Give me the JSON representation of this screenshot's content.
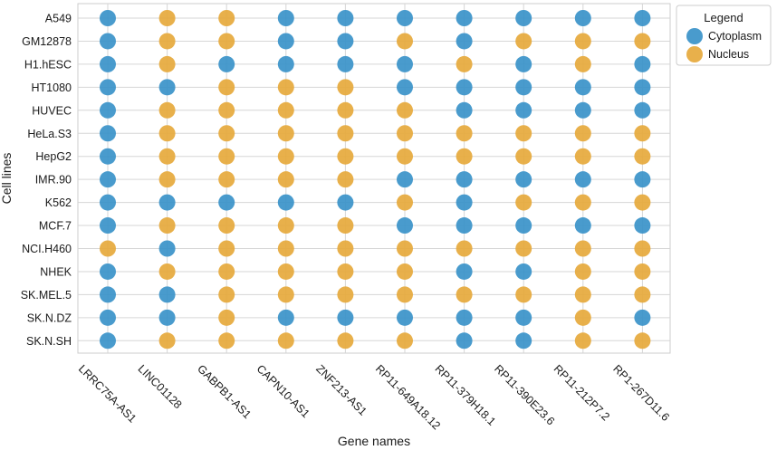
{
  "chart_data": {
    "type": "scatter",
    "title": "",
    "xlabel": "Gene names",
    "ylabel": "Cell lines",
    "grid": true,
    "legend_position": "top-right outside",
    "legend": {
      "title": "Legend",
      "entries": [
        {
          "name": "Cytoplasm",
          "color": "#3a93c9"
        },
        {
          "name": "Nucleus",
          "color": "#e6a93c"
        }
      ]
    },
    "x_categories": [
      "LRRC75A-AS1",
      "LINC01128",
      "GABPB1-AS1",
      "CAPN10-AS1",
      "ZNF213-AS1",
      "RP11-649A18.12",
      "RP11-379H18.1",
      "RP11-390E23.6",
      "RP11-212P7.2",
      "RP1-267D11.6"
    ],
    "y_categories": [
      "A549",
      "GM12878",
      "H1.hESC",
      "HT1080",
      "HUVEC",
      "HeLa.S3",
      "HepG2",
      "IMR.90",
      "K562",
      "MCF.7",
      "NCI.H460",
      "NHEK",
      "SK.MEL.5",
      "SK.N.DZ",
      "SK.N.SH"
    ],
    "series": [
      {
        "cell_line": "A549",
        "localization": [
          "Cytoplasm",
          "Nucleus",
          "Nucleus",
          "Cytoplasm",
          "Cytoplasm",
          "Cytoplasm",
          "Cytoplasm",
          "Cytoplasm",
          "Cytoplasm",
          "Cytoplasm"
        ]
      },
      {
        "cell_line": "GM12878",
        "localization": [
          "Cytoplasm",
          "Nucleus",
          "Nucleus",
          "Cytoplasm",
          "Cytoplasm",
          "Nucleus",
          "Cytoplasm",
          "Nucleus",
          "Nucleus",
          "Nucleus"
        ]
      },
      {
        "cell_line": "H1.hESC",
        "localization": [
          "Cytoplasm",
          "Nucleus",
          "Cytoplasm",
          "Cytoplasm",
          "Cytoplasm",
          "Cytoplasm",
          "Nucleus",
          "Cytoplasm",
          "Nucleus",
          "Cytoplasm"
        ]
      },
      {
        "cell_line": "HT1080",
        "localization": [
          "Cytoplasm",
          "Cytoplasm",
          "Nucleus",
          "Nucleus",
          "Nucleus",
          "Cytoplasm",
          "Cytoplasm",
          "Cytoplasm",
          "Cytoplasm",
          "Cytoplasm"
        ]
      },
      {
        "cell_line": "HUVEC",
        "localization": [
          "Cytoplasm",
          "Nucleus",
          "Nucleus",
          "Nucleus",
          "Nucleus",
          "Nucleus",
          "Cytoplasm",
          "Cytoplasm",
          "Cytoplasm",
          "Cytoplasm"
        ]
      },
      {
        "cell_line": "HeLa.S3",
        "localization": [
          "Cytoplasm",
          "Nucleus",
          "Nucleus",
          "Nucleus",
          "Nucleus",
          "Nucleus",
          "Nucleus",
          "Nucleus",
          "Nucleus",
          "Nucleus"
        ]
      },
      {
        "cell_line": "HepG2",
        "localization": [
          "Cytoplasm",
          "Nucleus",
          "Nucleus",
          "Nucleus",
          "Nucleus",
          "Nucleus",
          "Nucleus",
          "Nucleus",
          "Nucleus",
          "Nucleus"
        ]
      },
      {
        "cell_line": "IMR.90",
        "localization": [
          "Cytoplasm",
          "Nucleus",
          "Nucleus",
          "Nucleus",
          "Nucleus",
          "Cytoplasm",
          "Cytoplasm",
          "Cytoplasm",
          "Cytoplasm",
          "Cytoplasm"
        ]
      },
      {
        "cell_line": "K562",
        "localization": [
          "Cytoplasm",
          "Cytoplasm",
          "Cytoplasm",
          "Cytoplasm",
          "Cytoplasm",
          "Nucleus",
          "Cytoplasm",
          "Nucleus",
          "Nucleus",
          "Nucleus"
        ]
      },
      {
        "cell_line": "MCF.7",
        "localization": [
          "Cytoplasm",
          "Nucleus",
          "Nucleus",
          "Nucleus",
          "Nucleus",
          "Cytoplasm",
          "Cytoplasm",
          "Cytoplasm",
          "Cytoplasm",
          "Cytoplasm"
        ]
      },
      {
        "cell_line": "NCI.H460",
        "localization": [
          "Nucleus",
          "Cytoplasm",
          "Nucleus",
          "Nucleus",
          "Nucleus",
          "Nucleus",
          "Nucleus",
          "Nucleus",
          "Nucleus",
          "Nucleus"
        ]
      },
      {
        "cell_line": "NHEK",
        "localization": [
          "Cytoplasm",
          "Nucleus",
          "Nucleus",
          "Nucleus",
          "Nucleus",
          "Nucleus",
          "Cytoplasm",
          "Cytoplasm",
          "Nucleus",
          "Nucleus"
        ]
      },
      {
        "cell_line": "SK.MEL.5",
        "localization": [
          "Cytoplasm",
          "Cytoplasm",
          "Nucleus",
          "Nucleus",
          "Nucleus",
          "Nucleus",
          "Nucleus",
          "Nucleus",
          "Nucleus",
          "Nucleus"
        ]
      },
      {
        "cell_line": "SK.N.DZ",
        "localization": [
          "Cytoplasm",
          "Cytoplasm",
          "Nucleus",
          "Cytoplasm",
          "Cytoplasm",
          "Cytoplasm",
          "Cytoplasm",
          "Cytoplasm",
          "Nucleus",
          "Cytoplasm"
        ]
      },
      {
        "cell_line": "SK.N.SH",
        "localization": [
          "Cytoplasm",
          "Nucleus",
          "Nucleus",
          "Nucleus",
          "Nucleus",
          "Nucleus",
          "Cytoplasm",
          "Cytoplasm",
          "Nucleus",
          "Nucleus"
        ]
      }
    ]
  }
}
